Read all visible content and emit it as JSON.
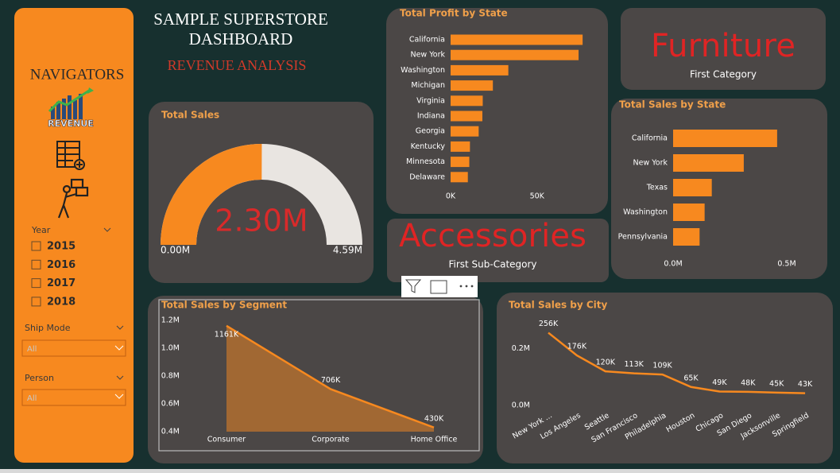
{
  "header": {
    "title": "SAMPLE SUPERSTORE DASHBOARD",
    "subtitle": "REVENUE ANALYSIS"
  },
  "sidebar": {
    "title": "NAVIGATORS",
    "nav_label": "REVENUE",
    "year": {
      "label": "Year",
      "options": [
        "2015",
        "2016",
        "2017",
        "2018"
      ]
    },
    "ship_mode": {
      "label": "Ship Mode",
      "value": "All"
    },
    "person": {
      "label": "Person",
      "value": "All"
    }
  },
  "cards": [
    {
      "value": "Furniture",
      "label": "First Category"
    },
    {
      "value": "Accessories",
      "label": "First Sub-Category"
    }
  ],
  "chart_data": [
    {
      "type": "gauge",
      "title": "Total Sales",
      "values": [
        2300000
      ],
      "value_labels": [
        "2.30M"
      ],
      "color": "#f7891f",
      "ylim": [
        0,
        4590000
      ],
      "yticks": [
        {
          "value": 0,
          "label": "0.00M"
        },
        {
          "value": 4590000,
          "label": "4.59M"
        }
      ]
    },
    {
      "type": "hbar",
      "title": "Total Profit by State",
      "categories": [
        "California",
        "New York",
        "Washington",
        "Michigan",
        "Virginia",
        "Indiana",
        "Georgia",
        "Kentucky",
        "Minnesota",
        "Delaware"
      ],
      "values": [
        76381,
        74039,
        33403,
        24463,
        18598,
        18383,
        16250,
        11200,
        10823,
        9977
      ],
      "color": "#f7891f",
      "xlim": [
        0,
        80000
      ],
      "xticks": [
        {
          "value": 0,
          "label": "0K"
        },
        {
          "value": 50000,
          "label": "50K"
        }
      ]
    },
    {
      "type": "hbar",
      "title": "Total Sales by State",
      "categories": [
        "California",
        "New York",
        "Texas",
        "Washington",
        "Pennsylvania"
      ],
      "values": [
        457688,
        310876,
        170188,
        138641,
        116512
      ],
      "color": "#f7891f",
      "xlim": [
        0,
        500000
      ],
      "xticks": [
        {
          "value": 0,
          "label": "0.0M"
        },
        {
          "value": 500000,
          "label": "0.5M"
        }
      ]
    },
    {
      "type": "area",
      "title": "Total Sales by Segment",
      "categories": [
        "Consumer",
        "Corporate",
        "Home Office"
      ],
      "values": [
        1161000,
        706000,
        430000
      ],
      "value_labels": [
        "1161K",
        "706K",
        "430K"
      ],
      "color": "#f7891f",
      "ylim": [
        400000,
        1200000
      ],
      "yticks": [
        {
          "value": 400000,
          "label": "0.4M"
        },
        {
          "value": 600000,
          "label": "0.6M"
        },
        {
          "value": 800000,
          "label": "0.8M"
        },
        {
          "value": 1000000,
          "label": "1.0M"
        },
        {
          "value": 1200000,
          "label": "1.2M"
        }
      ]
    },
    {
      "type": "line",
      "title": "Total Sales by City",
      "categories": [
        "New York ...",
        "Los Angeles",
        "Seattle",
        "San Francisco",
        "Philadelphia",
        "Houston",
        "Chicago",
        "San Diego",
        "Jacksonville",
        "Springfield"
      ],
      "values": [
        256000,
        176000,
        120000,
        113000,
        109000,
        65000,
        49000,
        48000,
        45000,
        43000
      ],
      "value_labels": [
        "256K",
        "176K",
        "120K",
        "113K",
        "109K",
        "65K",
        "49K",
        "48K",
        "45K",
        "43K"
      ],
      "color": "#f7891f",
      "ylim": [
        0,
        280000
      ],
      "yticks": [
        {
          "value": 0,
          "label": "0.0M"
        },
        {
          "value": 200000,
          "label": "0.2M"
        }
      ]
    }
  ]
}
